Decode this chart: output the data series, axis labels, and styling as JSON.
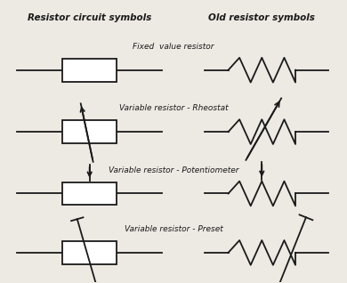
{
  "bg_color": "#ede9e3",
  "line_color": "#1a1a1a",
  "title_left": "Resistor circuit symbols",
  "title_right": "Old resistor symbols",
  "labels": [
    "Fixed  value resistor",
    "Variable resistor - Rheostat",
    "Variable resistor - Potentiometer",
    "Variable resistor - Preset"
  ],
  "figsize": [
    3.9,
    3.18
  ],
  "dpi": 100
}
